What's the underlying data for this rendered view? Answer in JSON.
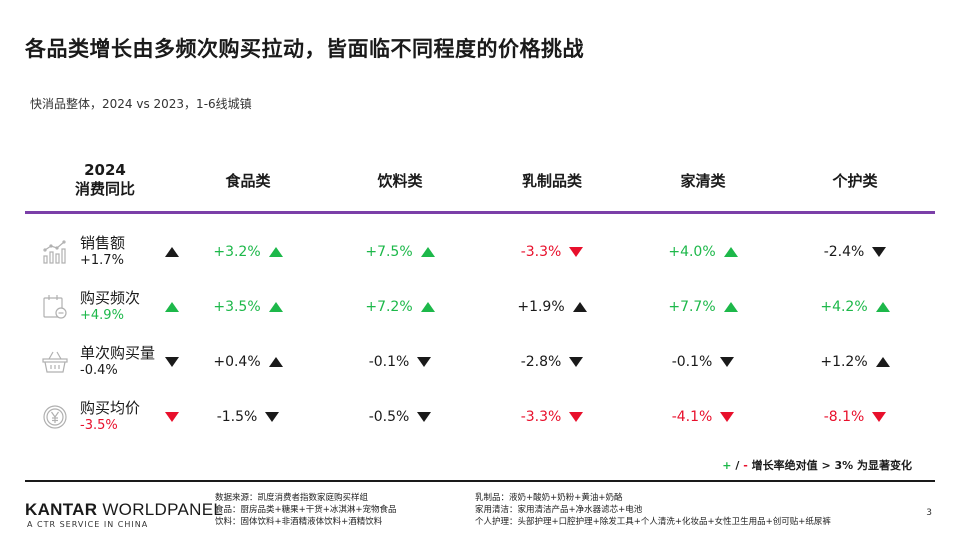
{
  "title": "各品类增长由多频次购买拉动，皆面临不同程度的价格挑战",
  "subtitle": "快消品整体，2024 vs 2023，1-6线城镇",
  "header": {
    "first_line1": "2024",
    "first_line2": "消费同比",
    "columns": [
      "食品类",
      "饮料类",
      "乳制品类",
      "家清类",
      "个护类"
    ]
  },
  "rows": [
    {
      "label": "销售额",
      "value": "+1.7%",
      "value_color": "black",
      "trend": "up",
      "trend_color": "black",
      "icon": "sales-chart-icon",
      "cells": [
        {
          "value": "+3.2%",
          "color": "green",
          "trend": "up"
        },
        {
          "value": "+7.5%",
          "color": "green",
          "trend": "up"
        },
        {
          "value": "-3.3%",
          "color": "red",
          "trend": "down"
        },
        {
          "value": "+4.0%",
          "color": "green",
          "trend": "up"
        },
        {
          "value": "-2.4%",
          "color": "black",
          "trend": "down"
        }
      ]
    },
    {
      "label": "购买频次",
      "value": "+4.9%",
      "value_color": "green",
      "trend": "up",
      "trend_color": "green",
      "icon": "calendar-icon",
      "cells": [
        {
          "value": "+3.5%",
          "color": "green",
          "trend": "up"
        },
        {
          "value": "+7.2%",
          "color": "green",
          "trend": "up"
        },
        {
          "value": "+1.9%",
          "color": "black",
          "trend": "up"
        },
        {
          "value": "+7.7%",
          "color": "green",
          "trend": "up"
        },
        {
          "value": "+4.2%",
          "color": "green",
          "trend": "up"
        }
      ]
    },
    {
      "label": "单次购买量",
      "value": "-0.4%",
      "value_color": "black",
      "trend": "down",
      "trend_color": "black",
      "icon": "basket-icon",
      "cells": [
        {
          "value": "+0.4%",
          "color": "black",
          "trend": "up"
        },
        {
          "value": "-0.1%",
          "color": "black",
          "trend": "down"
        },
        {
          "value": "-2.8%",
          "color": "black",
          "trend": "down"
        },
        {
          "value": "-0.1%",
          "color": "black",
          "trend": "down"
        },
        {
          "value": "+1.2%",
          "color": "black",
          "trend": "up"
        }
      ]
    },
    {
      "label": "购买均价",
      "value": "-3.5%",
      "value_color": "red",
      "trend": "down",
      "trend_color": "red",
      "icon": "yuan-coin-icon",
      "cells": [
        {
          "value": "-1.5%",
          "color": "black",
          "trend": "down"
        },
        {
          "value": "-0.5%",
          "color": "black",
          "trend": "down"
        },
        {
          "value": "-3.3%",
          "color": "red",
          "trend": "down"
        },
        {
          "value": "-4.1%",
          "color": "red",
          "trend": "down"
        },
        {
          "value": "-8.1%",
          "color": "red",
          "trend": "down"
        }
      ]
    }
  ],
  "note": {
    "plus": "+",
    "slash": " / ",
    "minus": "-",
    "text": " 增长率绝对值 > 3% 为显著变化"
  },
  "footer": {
    "brand_bold": "KANTAR",
    "brand_rest": " WORLDPANEL",
    "brand_sub": "A CTR SERVICE IN CHINA",
    "source_col1": [
      "数据来源：凯度消费者指数家庭购买样组",
      "食品：厨房品类+糖果+干货+冰淇淋+宠物食品",
      "饮料：固体饮料+非酒精液体饮料+酒精饮料"
    ],
    "source_col2": [
      "乳制品：液奶+酸奶+奶粉+黄油+奶酪",
      "家用清洁：家用清洁产品+净水器滤芯+电池",
      "个人护理：头部护理+口腔护理+除发工具+个人清洗+化妆品+女性卫生用品+创可贴+纸尿裤"
    ],
    "page": "3"
  },
  "colors": {
    "green": "#1db84a",
    "red": "#e8102c",
    "purple": "#7b3fa8",
    "black": "#1a1a1a"
  }
}
